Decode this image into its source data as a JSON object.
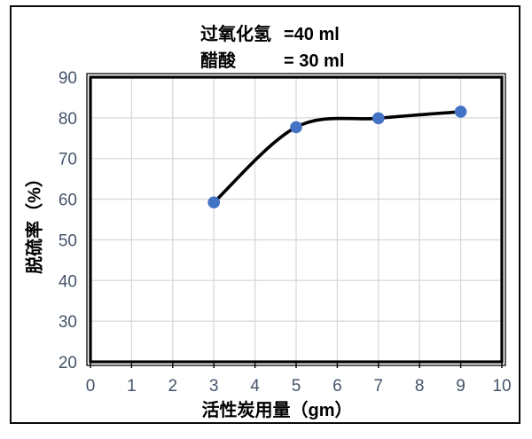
{
  "title": {
    "line1_label": "过氧化氢",
    "line1_value": "=40 ml",
    "line2_label": "醋酸",
    "line2_value": "= 30 ml"
  },
  "chart_data": {
    "type": "line",
    "x": [
      3,
      5,
      7,
      9
    ],
    "y": [
      59.2,
      77.7,
      79.9,
      81.5
    ],
    "title": "过氧化氢 =40 ml  醋酸 = 30 ml",
    "xlabel": "活性炭用量（gm）",
    "ylabel": "脱硫率（%）",
    "xlim": [
      0,
      10
    ],
    "ylim": [
      20,
      90
    ],
    "x_ticks": [
      0,
      1,
      2,
      3,
      4,
      5,
      6,
      7,
      8,
      9,
      10
    ],
    "y_ticks": [
      20,
      30,
      40,
      50,
      60,
      70,
      80,
      90
    ],
    "grid": true,
    "smoothed": true,
    "legend": "none",
    "colors": {
      "line": "#000000",
      "marker": "#4472C4",
      "gridline": "#D9D9D9",
      "tick_label": "#44546A",
      "plot_border": "#000000",
      "frame_border": "#0a0a0a"
    }
  }
}
